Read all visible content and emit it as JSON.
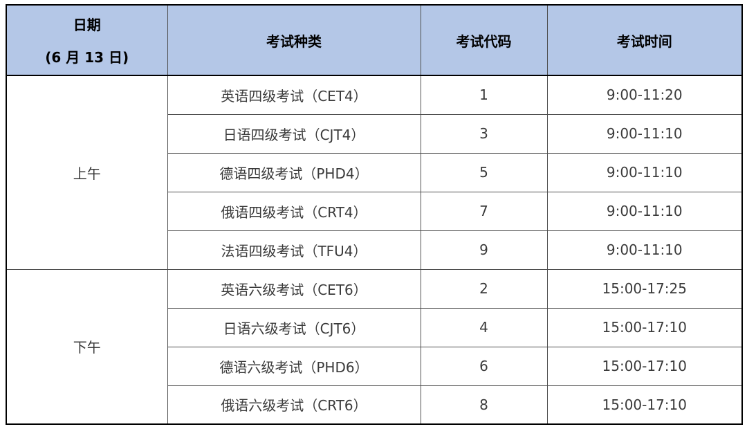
{
  "colors": {
    "header_bg": "#b4c7e7",
    "header_text": "#000000",
    "text": "#3a3a3a",
    "border_inner": "#4d4d4d",
    "border_outer": "#000000"
  },
  "table": {
    "header": {
      "date_title": "日期",
      "date_subtitle": "(6 月 13 日)",
      "exam_type": "考试种类",
      "exam_code": "考试代码",
      "exam_time": "考试时间"
    },
    "sections": [
      {
        "period": "上午",
        "rows": [
          {
            "type": "英语四级考试（CET4）",
            "code": "1",
            "time": "9:00-11:20"
          },
          {
            "type": "日语四级考试（CJT4）",
            "code": "3",
            "time": "9:00-11:10"
          },
          {
            "type": "德语四级考试（PHD4）",
            "code": "5",
            "time": "9:00-11:10"
          },
          {
            "type": "俄语四级考试（CRT4）",
            "code": "7",
            "time": "9:00-11:10"
          },
          {
            "type": "法语四级考试（TFU4）",
            "code": "9",
            "time": "9:00-11:10"
          }
        ]
      },
      {
        "period": "下午",
        "rows": [
          {
            "type": "英语六级考试（CET6）",
            "code": "2",
            "time": "15:00-17:25"
          },
          {
            "type": "日语六级考试（CJT6）",
            "code": "4",
            "time": "15:00-17:10"
          },
          {
            "type": "德语六级考试（PHD6）",
            "code": "6",
            "time": "15:00-17:10"
          },
          {
            "type": "俄语六级考试（CRT6）",
            "code": "8",
            "time": "15:00-17:10"
          }
        ]
      }
    ]
  },
  "chart_data": {
    "type": "table",
    "title": "",
    "columns": [
      "日期 (6 月 13 日)",
      "考试种类",
      "考试代码",
      "考试时间"
    ],
    "rows": [
      [
        "上午",
        "英语四级考试（CET4）",
        "1",
        "9:00-11:20"
      ],
      [
        "上午",
        "日语四级考试（CJT4）",
        "3",
        "9:00-11:10"
      ],
      [
        "上午",
        "德语四级考试（PHD4）",
        "5",
        "9:00-11:10"
      ],
      [
        "上午",
        "俄语四级考试（CRT4）",
        "7",
        "9:00-11:10"
      ],
      [
        "上午",
        "法语四级考试（TFU4）",
        "9",
        "9:00-11:10"
      ],
      [
        "下午",
        "英语六级考试（CET6）",
        "2",
        "15:00-17:25"
      ],
      [
        "下午",
        "日语六级考试（CJT6）",
        "4",
        "15:00-17:10"
      ],
      [
        "下午",
        "德语六级考试（PHD6）",
        "6",
        "15:00-17:10"
      ],
      [
        "下午",
        "俄语六级考试（CRT6）",
        "8",
        "15:00-17:10"
      ]
    ]
  }
}
